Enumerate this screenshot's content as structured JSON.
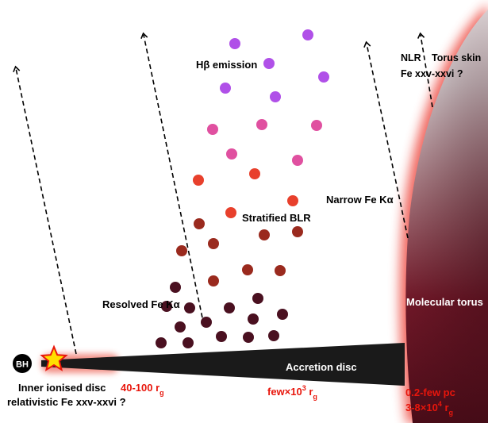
{
  "labels": {
    "bh": "BH",
    "inner_disc_line1": "Inner ionised disc",
    "inner_disc_line2": "relativistic Fe xxv-xxvi ?",
    "inner_radius": "40-100 r",
    "inner_radius_sub": "g",
    "accretion_disc": "Accretion disc",
    "disc_radius": "few×10",
    "disc_radius_sup": "3",
    "disc_radius_unit": " r",
    "disc_radius_sub": "g",
    "torus": "Molecular torus",
    "torus_radius_line1": "0.2-few pc",
    "torus_radius_line2": "3-8×10",
    "torus_radius_sup": "4",
    "torus_radius_unit": " r",
    "torus_radius_sub": "g",
    "resolved_fe": "Resolved Fe Kα",
    "stratified_blr": "Stratified BLR",
    "hbeta": "Hβ emission",
    "narrow_fe": "Narrow Fe Kα",
    "nlr": "NLR",
    "torus_skin": "Torus skin",
    "fe_torus_skin": "Fe xxv-xxvi ?"
  },
  "colors": {
    "inner_cloud": "#4a1020",
    "mid_cloud": "#9a2a1e",
    "red_cloud": "#e8402c",
    "pink_cloud": "#e050a0",
    "violet_cloud": "#b050e8",
    "red_text": "#e8160c",
    "disc": "#1a1a1a"
  }
}
